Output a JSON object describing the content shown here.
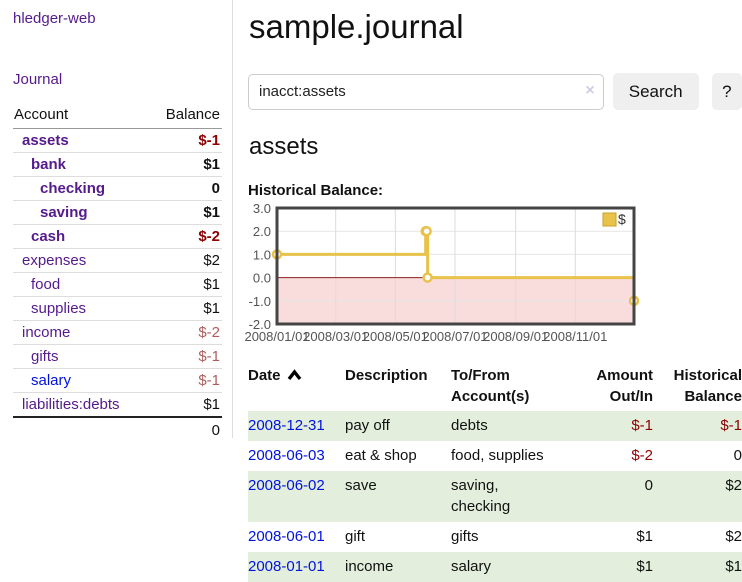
{
  "app": {
    "brand": "hledger-web"
  },
  "colors": {
    "accent_purple": "#551a8b",
    "link_blue": "#0013dd",
    "negative": "#8b0000",
    "negative_muted": "#b05c5c",
    "stripe_green": "#e3efdc",
    "chart_gold": "#e8c24a",
    "chart_negative_fill": "#f9dcdc",
    "zero_line": "#8b1f1f"
  },
  "sidebar": {
    "journal_link": "Journal",
    "accounts_table": {
      "headers": {
        "account": "Account",
        "balance": "Balance"
      },
      "rows": [
        {
          "name": "assets",
          "depth": 1,
          "bold": true,
          "balance": "$-1",
          "balance_style": "neg-strong"
        },
        {
          "name": "bank",
          "depth": 2,
          "bold": true,
          "balance": "$1",
          "balance_style": "pos"
        },
        {
          "name": "checking",
          "depth": 3,
          "bold": true,
          "balance": "0",
          "balance_style": "pos"
        },
        {
          "name": "saving",
          "depth": 3,
          "bold": true,
          "balance": "$1",
          "balance_style": "pos"
        },
        {
          "name": "cash",
          "depth": 2,
          "bold": true,
          "balance": "$-2",
          "balance_style": "neg-strong"
        },
        {
          "name": "expenses",
          "depth": 1,
          "bold": false,
          "balance": "$2",
          "balance_style": "pos"
        },
        {
          "name": "food",
          "depth": 2,
          "bold": false,
          "balance": "$1",
          "balance_style": "pos"
        },
        {
          "name": "supplies",
          "depth": 2,
          "bold": false,
          "balance": "$1",
          "balance_style": "pos"
        },
        {
          "name": "income",
          "depth": 1,
          "bold": false,
          "balance": "$-2",
          "balance_style": "neg-muted"
        },
        {
          "name": "gifts",
          "depth": 2,
          "bold": false,
          "balance": "$-1",
          "balance_style": "neg-muted"
        },
        {
          "name": "salary",
          "depth": 2,
          "bold": false,
          "unvisited": true,
          "balance": "$-1",
          "balance_style": "neg-muted"
        },
        {
          "name": "liabilities:debts",
          "depth": 1,
          "bold": false,
          "balance": "$1",
          "balance_style": "pos"
        }
      ],
      "total": "0"
    }
  },
  "header": {
    "title": "sample.journal"
  },
  "search": {
    "value": "inacct:assets",
    "clear_icon": "×",
    "button_label": "Search",
    "help_button_label": "?"
  },
  "main": {
    "account_heading": "assets",
    "chart_label": "Historical Balance:"
  },
  "chart_data": {
    "type": "line",
    "step": true,
    "title": "Historical Balance:",
    "series": [
      {
        "name": "$",
        "color": "#e8c24a",
        "points": [
          [
            "2008-01-01",
            1
          ],
          [
            "2008-06-01",
            2
          ],
          [
            "2008-06-02",
            2
          ],
          [
            "2008-06-03",
            0
          ],
          [
            "2008-12-31",
            -1
          ]
        ]
      }
    ],
    "x_ticks": [
      "2008/01/01",
      "2008/03/01",
      "2008/05/01",
      "2008/07/01",
      "2008/09/01",
      "2008/11/01"
    ],
    "y_ticks": [
      3.0,
      2.0,
      1.0,
      0.0,
      -1.0,
      -2.0
    ],
    "xlim": [
      "2008-01-01",
      "2008-12-31"
    ],
    "ylim": [
      -2,
      3
    ],
    "legend": "$",
    "legend_position": "top-right",
    "grid": true,
    "negative_fill": "#f9dcdc",
    "zero_line_color": "#8b1f1f",
    "border_color": "#454545",
    "tick_label_color": "#545454"
  },
  "register": {
    "headers": {
      "date": "Date",
      "description": "Description",
      "accounts": "To/From Account(s)",
      "amount": "Amount Out/In",
      "balance": "Historical Balance"
    },
    "rows": [
      {
        "date": "2008-12-31",
        "description": "pay off",
        "accounts": "debts",
        "amount": "$-1",
        "amount_neg": true,
        "balance": "$-1",
        "balance_neg": true
      },
      {
        "date": "2008-06-03",
        "description": "eat & shop",
        "accounts": "food, supplies",
        "amount": "$-2",
        "amount_neg": true,
        "balance": "0",
        "balance_neg": false
      },
      {
        "date": "2008-06-02",
        "description": "save",
        "accounts": "saving, checking",
        "amount": "0",
        "amount_neg": false,
        "balance": "$2",
        "balance_neg": false
      },
      {
        "date": "2008-06-01",
        "description": "gift",
        "accounts": "gifts",
        "amount": "$1",
        "amount_neg": false,
        "balance": "$2",
        "balance_neg": false
      },
      {
        "date": "2008-01-01",
        "description": "income",
        "accounts": "salary",
        "amount": "$1",
        "amount_neg": false,
        "balance": "$1",
        "balance_neg": false
      }
    ]
  }
}
